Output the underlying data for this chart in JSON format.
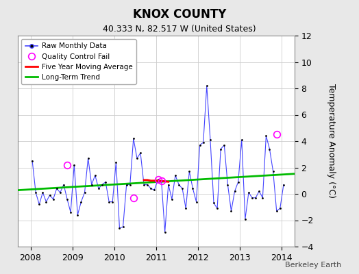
{
  "title": "KNOX COUNTY",
  "subtitle": "40.333 N, 82.517 W (United States)",
  "ylabel": "Temperature Anomaly (°C)",
  "credit": "Berkeley Earth",
  "ylim": [
    -4,
    12
  ],
  "yticks": [
    -4,
    -2,
    0,
    2,
    4,
    6,
    8,
    10,
    12
  ],
  "xlim": [
    2007.7,
    2014.3
  ],
  "bg_color": "#e8e8e8",
  "plot_bg_color": "#ffffff",
  "raw_color": "#4444ff",
  "raw_marker_color": "#000000",
  "ma_color": "#ff0000",
  "trend_color": "#00bb00",
  "qc_color": "#ff00ff",
  "monthly_data": [
    2008.042,
    2.5,
    2008.125,
    0.1,
    2008.208,
    -0.8,
    2008.292,
    0.1,
    2008.375,
    -0.6,
    2008.458,
    -0.1,
    2008.542,
    -0.4,
    2008.625,
    0.4,
    2008.708,
    0.1,
    2008.792,
    0.7,
    2008.875,
    -0.4,
    2008.958,
    -1.4,
    2009.042,
    2.2,
    2009.125,
    -1.6,
    2009.208,
    -0.6,
    2009.292,
    0.1,
    2009.375,
    2.7,
    2009.458,
    0.7,
    2009.542,
    1.4,
    2009.625,
    0.4,
    2009.708,
    0.7,
    2009.792,
    0.9,
    2009.875,
    -0.6,
    2009.958,
    -0.6,
    2010.042,
    2.4,
    2010.125,
    -2.6,
    2010.208,
    -2.5,
    2010.292,
    0.7,
    2010.375,
    0.7,
    2010.458,
    4.2,
    2010.542,
    2.7,
    2010.625,
    3.1,
    2010.708,
    0.7,
    2010.792,
    0.7,
    2010.875,
    0.4,
    2010.958,
    0.3,
    2011.042,
    1.1,
    2011.125,
    1.0,
    2011.208,
    -2.9,
    2011.292,
    0.7,
    2011.375,
    -0.4,
    2011.458,
    1.4,
    2011.542,
    0.7,
    2011.625,
    0.4,
    2011.708,
    -1.1,
    2011.792,
    1.7,
    2011.875,
    0.4,
    2011.958,
    -0.6,
    2012.042,
    3.7,
    2012.125,
    3.9,
    2012.208,
    8.2,
    2012.292,
    4.1,
    2012.375,
    -0.7,
    2012.458,
    -1.1,
    2012.542,
    3.4,
    2012.625,
    3.7,
    2012.708,
    0.7,
    2012.792,
    -1.3,
    2012.875,
    0.2,
    2012.958,
    0.9,
    2013.042,
    4.1,
    2013.125,
    -1.9,
    2013.208,
    0.1,
    2013.292,
    -0.3,
    2013.375,
    -0.3,
    2013.458,
    0.2,
    2013.542,
    -0.3,
    2013.625,
    4.4,
    2013.708,
    3.4,
    2013.792,
    1.7,
    2013.875,
    -1.3,
    2013.958,
    -1.1,
    2014.042,
    0.7
  ],
  "qc_fail_x": [
    2008.875,
    2010.458,
    2011.042,
    2011.125,
    2013.875
  ],
  "qc_fail_y": [
    2.2,
    -0.3,
    1.1,
    1.0,
    4.5
  ],
  "moving_avg_x": [
    2010.708,
    2010.792,
    2010.875,
    2010.958,
    2011.042,
    2011.125,
    2011.208,
    2011.292
  ],
  "moving_avg_y": [
    1.05,
    1.05,
    1.0,
    1.0,
    1.0,
    0.98,
    0.95,
    0.92
  ],
  "trend_x": [
    2007.7,
    2014.3
  ],
  "trend_y": [
    0.28,
    1.52
  ]
}
